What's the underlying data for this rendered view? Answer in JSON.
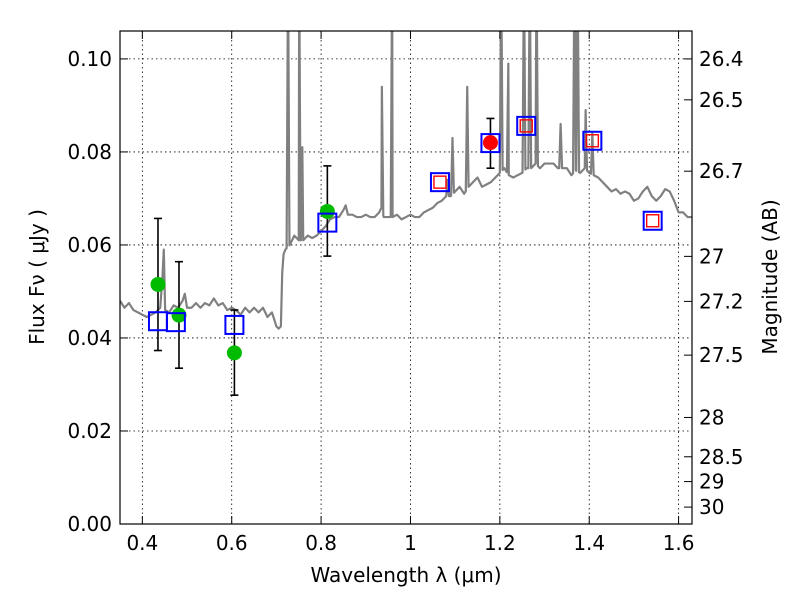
{
  "chart_data": {
    "type": "scatter",
    "xlabel": "Wavelength  λ (μm)",
    "ylabel": "Flux  Fν  ( μJy )",
    "y2label": "Magnitude (AB)",
    "xlim": [
      0.35,
      1.63
    ],
    "ylim": [
      0.0,
      0.106
    ],
    "grid": true,
    "x_ticks": [
      0.4,
      0.6,
      0.8,
      1.0,
      1.2,
      1.4,
      1.6
    ],
    "x_tick_labels": [
      "0.4",
      "0.6",
      "0.8",
      "1",
      "1.2",
      "1.4",
      "1.6"
    ],
    "y_ticks": [
      0.0,
      0.02,
      0.04,
      0.06,
      0.08,
      0.1
    ],
    "y_tick_labels": [
      "0.00",
      "0.02",
      "0.04",
      "0.06",
      "0.08",
      "0.10"
    ],
    "mag_ticks": [
      26.4,
      26.5,
      26.7,
      27,
      27.2,
      27.5,
      28,
      28.5,
      29,
      30
    ],
    "mag_tick_labels": [
      "26.4",
      "26.5",
      "26.7",
      "27",
      "27.2",
      "27.5",
      "28",
      "28.5",
      "29",
      "30"
    ],
    "model_spectrum": {
      "name": "model SED",
      "color": "#808080",
      "points": [
        [
          0.35,
          0.048
        ],
        [
          0.36,
          0.0465
        ],
        [
          0.37,
          0.0475
        ],
        [
          0.38,
          0.046
        ],
        [
          0.39,
          0.0455
        ],
        [
          0.4,
          0.045
        ],
        [
          0.41,
          0.0445
        ],
        [
          0.42,
          0.045
        ],
        [
          0.43,
          0.0455
        ],
        [
          0.44,
          0.0465
        ],
        [
          0.445,
          0.053
        ],
        [
          0.448,
          0.059
        ],
        [
          0.451,
          0.046
        ],
        [
          0.46,
          0.0455
        ],
        [
          0.47,
          0.047
        ],
        [
          0.48,
          0.0465
        ],
        [
          0.49,
          0.048
        ],
        [
          0.495,
          0.0495
        ],
        [
          0.5,
          0.0465
        ],
        [
          0.51,
          0.0465
        ],
        [
          0.52,
          0.0475
        ],
        [
          0.53,
          0.0465
        ],
        [
          0.54,
          0.0475
        ],
        [
          0.55,
          0.047
        ],
        [
          0.56,
          0.0485
        ],
        [
          0.57,
          0.047
        ],
        [
          0.58,
          0.0475
        ],
        [
          0.59,
          0.046
        ],
        [
          0.6,
          0.0465
        ],
        [
          0.61,
          0.046
        ],
        [
          0.62,
          0.045
        ],
        [
          0.63,
          0.0465
        ],
        [
          0.64,
          0.0455
        ],
        [
          0.65,
          0.0465
        ],
        [
          0.66,
          0.0455
        ],
        [
          0.67,
          0.0465
        ],
        [
          0.68,
          0.0445
        ],
        [
          0.69,
          0.0455
        ],
        [
          0.7,
          0.0425
        ],
        [
          0.705,
          0.042
        ],
        [
          0.71,
          0.0425
        ],
        [
          0.713,
          0.054
        ],
        [
          0.716,
          0.058
        ],
        [
          0.72,
          0.059
        ],
        [
          0.73,
          0.06
        ],
        [
          0.74,
          0.062
        ],
        [
          0.75,
          0.061
        ],
        [
          0.76,
          0.061
        ],
        [
          0.77,
          0.062
        ],
        [
          0.78,
          0.0615
        ],
        [
          0.79,
          0.062
        ],
        [
          0.8,
          0.063
        ],
        [
          0.81,
          0.064
        ],
        [
          0.82,
          0.0655
        ],
        [
          0.83,
          0.066
        ],
        [
          0.84,
          0.066
        ],
        [
          0.85,
          0.0675
        ],
        [
          0.855,
          0.0685
        ],
        [
          0.86,
          0.0665
        ],
        [
          0.87,
          0.0665
        ],
        [
          0.88,
          0.066
        ],
        [
          0.89,
          0.066
        ],
        [
          0.9,
          0.0665
        ],
        [
          0.91,
          0.066
        ],
        [
          0.92,
          0.066
        ],
        [
          0.93,
          0.067
        ],
        [
          0.935,
          0.068
        ],
        [
          0.94,
          0.066
        ],
        [
          0.95,
          0.066
        ],
        [
          0.96,
          0.066
        ],
        [
          0.97,
          0.0665
        ],
        [
          0.98,
          0.0655
        ],
        [
          0.99,
          0.066
        ],
        [
          1.0,
          0.0665
        ],
        [
          1.01,
          0.066
        ],
        [
          1.02,
          0.066
        ],
        [
          1.03,
          0.067
        ],
        [
          1.04,
          0.0675
        ],
        [
          1.05,
          0.068
        ],
        [
          1.06,
          0.069
        ],
        [
          1.07,
          0.0695
        ],
        [
          1.08,
          0.0705
        ],
        [
          1.09,
          0.0705
        ],
        [
          1.1,
          0.0715
        ],
        [
          1.11,
          0.0725
        ],
        [
          1.12,
          0.071
        ],
        [
          1.13,
          0.0725
        ],
        [
          1.14,
          0.0735
        ],
        [
          1.15,
          0.0745
        ],
        [
          1.16,
          0.0725
        ],
        [
          1.17,
          0.073
        ],
        [
          1.18,
          0.0735
        ],
        [
          1.19,
          0.0745
        ],
        [
          1.2,
          0.0755
        ],
        [
          1.21,
          0.0765
        ],
        [
          1.22,
          0.075
        ],
        [
          1.23,
          0.0745
        ],
        [
          1.24,
          0.075
        ],
        [
          1.25,
          0.0755
        ],
        [
          1.26,
          0.0765
        ],
        [
          1.27,
          0.0765
        ],
        [
          1.28,
          0.0775
        ],
        [
          1.29,
          0.0765
        ],
        [
          1.3,
          0.0775
        ],
        [
          1.31,
          0.0775
        ],
        [
          1.32,
          0.0775
        ],
        [
          1.33,
          0.0765
        ],
        [
          1.34,
          0.0765
        ],
        [
          1.35,
          0.0765
        ],
        [
          1.36,
          0.075
        ],
        [
          1.37,
          0.076
        ],
        [
          1.38,
          0.0755
        ],
        [
          1.39,
          0.0765
        ],
        [
          1.4,
          0.0755
        ],
        [
          1.41,
          0.075
        ],
        [
          1.42,
          0.0745
        ],
        [
          1.43,
          0.0735
        ],
        [
          1.44,
          0.0725
        ],
        [
          1.45,
          0.0715
        ],
        [
          1.46,
          0.072
        ],
        [
          1.47,
          0.071
        ],
        [
          1.48,
          0.0715
        ],
        [
          1.49,
          0.071
        ],
        [
          1.5,
          0.0695
        ],
        [
          1.51,
          0.07
        ],
        [
          1.52,
          0.0715
        ],
        [
          1.53,
          0.0725
        ],
        [
          1.54,
          0.0705
        ],
        [
          1.55,
          0.0695
        ],
        [
          1.56,
          0.0705
        ],
        [
          1.57,
          0.072
        ],
        [
          1.58,
          0.0715
        ],
        [
          1.59,
          0.0695
        ],
        [
          1.6,
          0.067
        ],
        [
          1.61,
          0.067
        ],
        [
          1.62,
          0.066
        ],
        [
          1.63,
          0.066
        ]
      ],
      "emission_lines": [
        [
          0.726,
          0.12
        ],
        [
          0.751,
          0.12
        ],
        [
          0.758,
          0.081
        ],
        [
          0.936,
          0.094
        ],
        [
          0.959,
          0.12
        ],
        [
          1.083,
          0.074
        ],
        [
          1.094,
          0.083
        ],
        [
          1.127,
          0.094
        ],
        [
          1.203,
          0.12
        ],
        [
          1.219,
          0.099
        ],
        [
          1.254,
          0.12
        ],
        [
          1.267,
          0.12
        ],
        [
          1.282,
          0.12
        ],
        [
          1.336,
          0.086
        ],
        [
          1.367,
          0.12
        ],
        [
          1.374,
          0.12
        ],
        [
          1.392,
          0.089
        ],
        [
          1.407,
          0.084
        ]
      ]
    },
    "series": [
      {
        "name": "green filled circles",
        "marker": "circle",
        "color": "#00bb00",
        "points": [
          {
            "x": 0.435,
            "y": 0.0515,
            "yerr_low": 0.0373,
            "yerr_high": 0.0657
          },
          {
            "x": 0.482,
            "y": 0.0449,
            "yerr_low": 0.0335,
            "yerr_high": 0.0564
          },
          {
            "x": 0.606,
            "y": 0.0368,
            "yerr_low": 0.0277,
            "yerr_high": 0.046
          },
          {
            "x": 0.814,
            "y": 0.0672,
            "yerr_low": 0.0576,
            "yerr_high": 0.077
          }
        ]
      },
      {
        "name": "red filled circles",
        "marker": "circle",
        "color": "#ff0000",
        "points": [
          {
            "x": 1.179,
            "y": 0.082,
            "yerr_low": 0.0765,
            "yerr_high": 0.0872
          }
        ]
      },
      {
        "name": "blue open squares",
        "marker": "square",
        "color": "#0000ff",
        "points": [
          {
            "x": 0.435,
            "y": 0.0436
          },
          {
            "x": 0.475,
            "y": 0.0434
          },
          {
            "x": 0.606,
            "y": 0.0428
          },
          {
            "x": 0.814,
            "y": 0.0648
          },
          {
            "x": 1.066,
            "y": 0.0735
          },
          {
            "x": 1.179,
            "y": 0.0819
          },
          {
            "x": 1.259,
            "y": 0.0856
          },
          {
            "x": 1.407,
            "y": 0.0824
          },
          {
            "x": 1.542,
            "y": 0.0652
          }
        ]
      },
      {
        "name": "red open squares",
        "marker": "square-small",
        "color": "#ff0000",
        "points": [
          {
            "x": 1.066,
            "y": 0.0735
          },
          {
            "x": 1.259,
            "y": 0.0856
          },
          {
            "x": 1.407,
            "y": 0.0824
          },
          {
            "x": 1.542,
            "y": 0.0652
          }
        ]
      }
    ]
  }
}
